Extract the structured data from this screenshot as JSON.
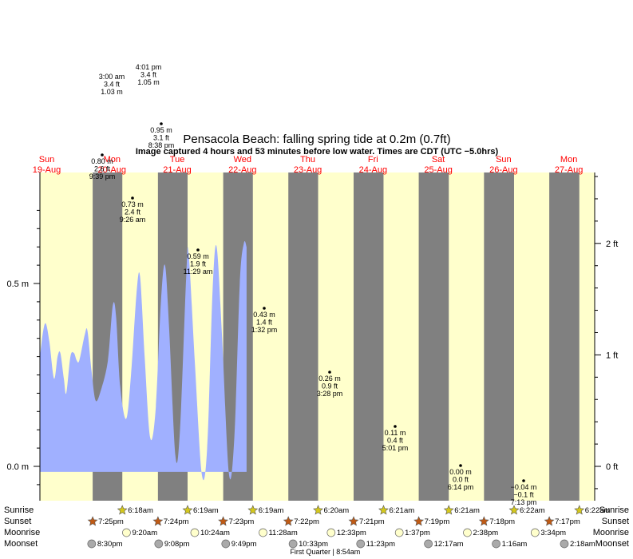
{
  "colors": {
    "day": "#ffffcc",
    "night": "#808080",
    "water": "#a0b0ff",
    "day_label": "#ff0000",
    "sunrise_star": "#d4c81c",
    "sunset_star": "#c05a14",
    "moon": "#ffffcc",
    "moonset": "#aaaaaa"
  },
  "header": {
    "title": "Pensacola Beach: falling  spring tide at 0.2m (0.7ft)",
    "subtitle": "Image captured 4 hours and 53 minutes before low water. Times are CDT (UTC −5.0hrs)"
  },
  "chart_data": {
    "type": "area",
    "title": "Pensacola Beach: falling  spring tide at 0.2m (0.7ft)",
    "y_left_ticks": [
      {
        "value": 0.0,
        "label": "0.0 m"
      },
      {
        "value": 0.5,
        "label": "0.5 m"
      }
    ],
    "y_right_ticks": [
      {
        "value": 0.0,
        "label": "0 ft"
      },
      {
        "value": 0.3048,
        "label": "1 ft"
      },
      {
        "value": 0.6096,
        "label": "2 ft"
      }
    ],
    "ylim_m": [
      -0.09,
      0.8
    ],
    "x_range_hours": [
      0,
      204
    ],
    "days": [
      {
        "name": "Sun",
        "date": "19-Aug"
      },
      {
        "name": "Mon",
        "date": "20-Aug"
      },
      {
        "name": "Tue",
        "date": "21-Aug"
      },
      {
        "name": "Wed",
        "date": "22-Aug"
      },
      {
        "name": "Thu",
        "date": "23-Aug"
      },
      {
        "name": "Fri",
        "date": "24-Aug"
      },
      {
        "name": "Sat",
        "date": "25-Aug"
      },
      {
        "name": "Sun",
        "date": "26-Aug"
      },
      {
        "name": "Mon",
        "date": "27-Aug"
      }
    ],
    "tide_points": [
      [
        0.0,
        0.3
      ],
      [
        1.2,
        0.37
      ],
      [
        2.2,
        0.39
      ],
      [
        3.5,
        0.34
      ],
      [
        5.2,
        0.24
      ],
      [
        6.5,
        0.3
      ],
      [
        7.5,
        0.31
      ],
      [
        8.8,
        0.24
      ],
      [
        9.7,
        0.2
      ],
      [
        11.2,
        0.3
      ],
      [
        12.5,
        0.31
      ],
      [
        13.5,
        0.29
      ],
      [
        14.5,
        0.29
      ],
      [
        16.5,
        0.36
      ],
      [
        17.5,
        0.37
      ],
      [
        19.0,
        0.26
      ],
      [
        20.5,
        0.18
      ],
      [
        22.5,
        0.21
      ],
      [
        25.0,
        0.29
      ],
      [
        26.8,
        0.44
      ],
      [
        28.0,
        0.41
      ],
      [
        29.5,
        0.22
      ],
      [
        31.7,
        0.13
      ],
      [
        33.5,
        0.25
      ],
      [
        35.5,
        0.47
      ],
      [
        36.8,
        0.52
      ],
      [
        38.5,
        0.3
      ],
      [
        40.5,
        0.08
      ],
      [
        42.5,
        0.15
      ],
      [
        44.5,
        0.45
      ],
      [
        46.0,
        0.55
      ],
      [
        47.5,
        0.38
      ],
      [
        49.8,
        0.03
      ],
      [
        51.5,
        0.1
      ],
      [
        53.8,
        0.52
      ],
      [
        54.7,
        0.58
      ],
      [
        57.0,
        0.28
      ],
      [
        59.5,
        -0.02
      ],
      [
        61.5,
        0.05
      ],
      [
        63.5,
        0.48
      ],
      [
        65.0,
        0.6
      ],
      [
        67.0,
        0.35
      ],
      [
        69.5,
        -0.02
      ],
      [
        71.5,
        0.08
      ],
      [
        73.5,
        0.5
      ],
      [
        75.0,
        0.61
      ],
      [
        76.0,
        0.6
      ]
    ],
    "extremes": [
      {
        "type": "high",
        "x": 1.5,
        "y": 1.03,
        "lines": [
          "3:00 am",
          "3.4 ft",
          "1.03 m"
        ]
      },
      {
        "type": "high",
        "x": 14.0,
        "y": 1.05,
        "lines": [
          "4:01 pm",
          "3.4 ft",
          "1.05 m"
        ]
      },
      {
        "type": "low",
        "x": 20.6,
        "y": 0.95,
        "lines": [
          "0.95 m",
          "3.1 ft",
          "8:38 pm"
        ]
      },
      {
        "type": "low",
        "x": 21.7,
        "y": 0.8,
        "lines": [
          "0.80 m",
          "2.6 ft",
          "9:39 pm"
        ]
      },
      {
        "type": "low",
        "x": 33.4,
        "y": 0.73,
        "lines": [
          "0.73 m",
          "2.4 ft",
          "9:26 am"
        ]
      },
      {
        "type": "low",
        "x": 59.5,
        "y": 0.59,
        "lines": [
          "0.59 m",
          "1.9 ft",
          "11:29 am"
        ]
      },
      {
        "type": "low",
        "x": 85.5,
        "y": 0.43,
        "lines": [
          "0.43 m",
          "1.4 ft",
          "1:32 pm"
        ]
      },
      {
        "type": "low",
        "x": 111.5,
        "y": 0.26,
        "lines": [
          "0.26 m",
          "0.9 ft",
          "3:28 pm"
        ]
      },
      {
        "type": "low",
        "x": 137.0,
        "y": 0.11,
        "lines": [
          "0.11 m",
          "0.4 ft",
          "5:01 pm"
        ]
      },
      {
        "type": "low",
        "x": 162.2,
        "y": 0.0,
        "lines": [
          "0.00 m",
          "0.0 ft",
          "6:14 pm"
        ]
      },
      {
        "type": "low",
        "x": 187.2,
        "y": -0.04,
        "lines": [
          "−0.04 m",
          "−0.1 ft",
          "7:13 pm"
        ]
      }
    ],
    "bottom_rows": {
      "labels": [
        "Sunrise",
        "Sunset",
        "Moonrise",
        "Moonset"
      ],
      "sunrise": [
        {
          "x": 30.3,
          "time": "6:18am"
        },
        {
          "x": 54.3,
          "time": "6:19am"
        },
        {
          "x": 78.3,
          "time": "6:19am"
        },
        {
          "x": 102.3,
          "time": "6:20am"
        },
        {
          "x": 126.35,
          "time": "6:21am"
        },
        {
          "x": 150.35,
          "time": "6:21am"
        },
        {
          "x": 174.35,
          "time": "6:22am"
        },
        {
          "x": 198.35,
          "time": "6:22am"
        }
      ],
      "sunset": [
        {
          "x": 19.4,
          "time": "7:25pm"
        },
        {
          "x": 43.4,
          "time": "7:24pm"
        },
        {
          "x": 67.4,
          "time": "7:23pm"
        },
        {
          "x": 91.35,
          "time": "7:22pm"
        },
        {
          "x": 115.35,
          "time": "7:21pm"
        },
        {
          "x": 139.3,
          "time": "7:19pm"
        },
        {
          "x": 163.3,
          "time": "7:18pm"
        },
        {
          "x": 187.3,
          "time": "7:17pm"
        }
      ],
      "moonrise": [
        {
          "x": 33.3,
          "time": "9:20am"
        },
        {
          "x": 58.4,
          "time": "10:24am"
        },
        {
          "x": 83.5,
          "time": "11:28am"
        },
        {
          "x": 108.55,
          "time": "12:33pm"
        },
        {
          "x": 133.6,
          "time": "1:37pm"
        },
        {
          "x": 158.65,
          "time": "2:38pm"
        },
        {
          "x": 183.55,
          "time": "3:34pm"
        }
      ],
      "moonset": [
        {
          "x": 20.5,
          "time": "8:30pm"
        },
        {
          "x": 45.15,
          "time": "9:08pm"
        },
        {
          "x": 69.8,
          "time": "9:49pm"
        },
        {
          "x": 94.55,
          "time": "10:33pm"
        },
        {
          "x": 119.4,
          "time": "11:23pm"
        },
        {
          "x": 144.3,
          "time": "12:17am"
        },
        {
          "x": 169.25,
          "time": "1:16am"
        },
        {
          "x": 194.3,
          "time": "2:18am"
        }
      ],
      "moon_phase": {
        "x": 104.9,
        "text": "First Quarter | 8:54am"
      }
    }
  }
}
